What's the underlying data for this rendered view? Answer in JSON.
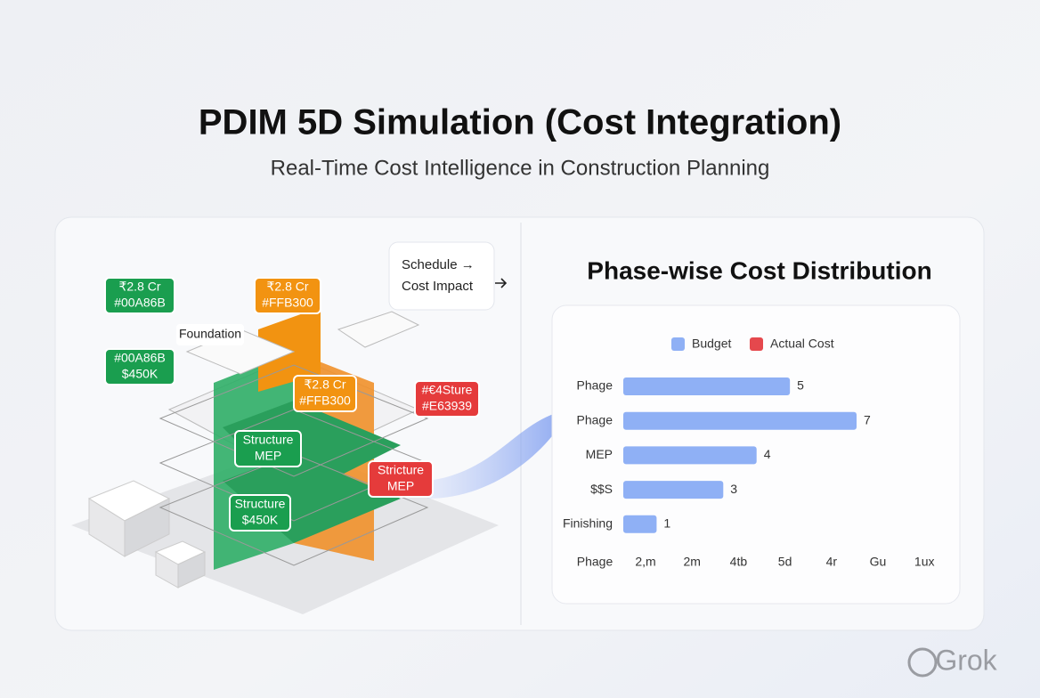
{
  "header": {
    "title": "PDIM 5D Simulation (Cost Integration)",
    "subtitle": "Real-Time Cost Intelligence in Construction Planning"
  },
  "illustration": {
    "foundation_label": "Foundation",
    "tags": [
      {
        "lines": [
          "₹2.8 Cr",
          "#00A86B"
        ],
        "color": "#1a9e4f"
      },
      {
        "lines": [
          "#00A86B",
          "$450K"
        ],
        "color": "#1a9e4f"
      },
      {
        "lines": [
          "₹2.8 Cr",
          "#FFB300"
        ],
        "color": "#f29311"
      },
      {
        "lines": [
          "₹2.8 Cr",
          "#FFB300"
        ],
        "color": "#f29311"
      },
      {
        "lines": [
          "#€4Sture",
          "#E63939"
        ],
        "color": "#e53b3b"
      },
      {
        "lines": [
          "Structure",
          "MEP"
        ],
        "color": "#1a9e4f"
      },
      {
        "lines": [
          "Stricture",
          "MEP"
        ],
        "color": "#e53b3b"
      },
      {
        "lines": [
          "Structure",
          "$450K"
        ],
        "color": "#1a9e4f"
      }
    ],
    "callout": [
      "Schedule →",
      "Cost Impact"
    ]
  },
  "chart_data": {
    "type": "bar",
    "orientation": "horizontal",
    "title": "Phase-wise Cost Distribution",
    "legend": [
      {
        "label": "Budget",
        "color": "#8fb0f5"
      },
      {
        "label": "Actual Cost",
        "color": "#e5484d"
      }
    ],
    "categories": [
      "Phage",
      "Phage",
      "MEP",
      "$$S",
      "Finishing"
    ],
    "values": [
      5,
      7,
      4,
      3,
      1
    ],
    "color": "#8fb0f5",
    "xlim": [
      0,
      7
    ],
    "x_axis_labels": [
      "Phage",
      "2,m",
      "2m",
      "4tb",
      "5d",
      "4r",
      "Gu",
      "1ux"
    ]
  },
  "watermark": "Grok"
}
